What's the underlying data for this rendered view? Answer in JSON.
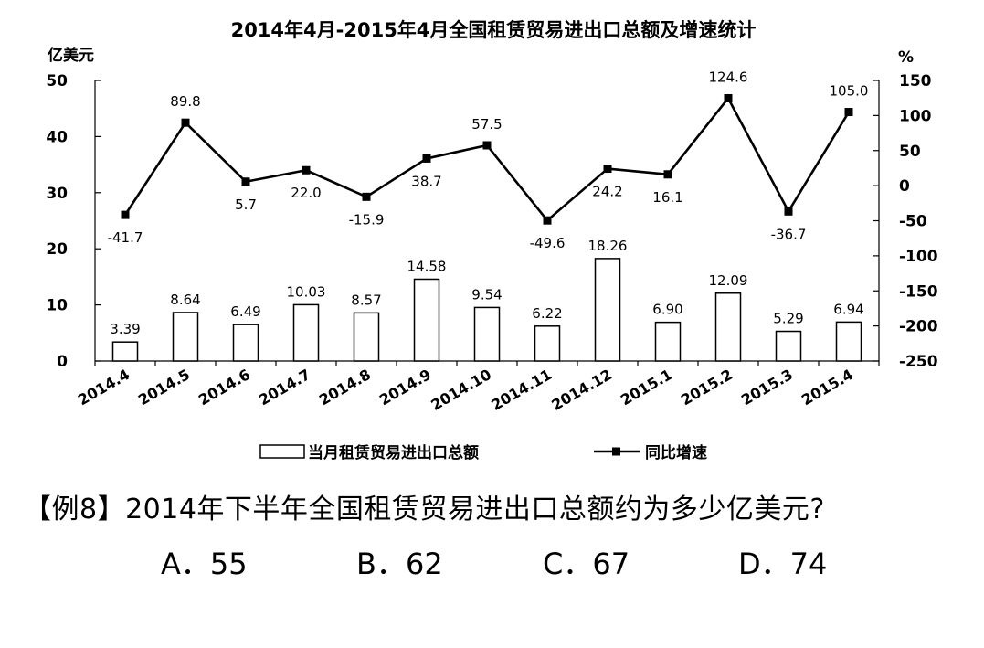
{
  "chart_data": {
    "type": "bar+line",
    "title": "2014年4月-2015年4月全国租赁贸易进出口总额及增速统计",
    "y_left_label": "亿美元",
    "y_right_label": "%",
    "y_left_lim": [
      0,
      50
    ],
    "y_left_ticks": [
      "0",
      "10",
      "20",
      "30",
      "40",
      "50"
    ],
    "y_right_lim": [
      -250,
      150
    ],
    "y_right_ticks": [
      "-250",
      "-200",
      "-150",
      "-100",
      "-50",
      "0",
      "50",
      "100",
      "150"
    ],
    "categories": [
      "2014.4",
      "2014.5",
      "2014.6",
      "2014.7",
      "2014.8",
      "2014.9",
      "2014.10",
      "2014.11",
      "2014.12",
      "2015.1",
      "2015.2",
      "2015.3",
      "2015.4"
    ],
    "series": [
      {
        "name": "当月租赁贸易进出口总额",
        "type": "bar",
        "axis": "left",
        "values": [
          3.39,
          8.64,
          6.49,
          10.03,
          8.57,
          14.58,
          9.54,
          6.22,
          18.26,
          6.9,
          12.09,
          5.29,
          6.94
        ],
        "labels": [
          "3.39",
          "8.64",
          "6.49",
          "10.03",
          "8.57",
          "14.58",
          "9.54",
          "6.22",
          "18.26",
          "6.90",
          "12.09",
          "5.29",
          "6.94"
        ]
      },
      {
        "name": "同比增速",
        "type": "line",
        "axis": "right",
        "values": [
          -41.7,
          89.8,
          5.7,
          22.0,
          -15.9,
          38.7,
          57.5,
          -49.6,
          24.2,
          16.1,
          124.6,
          -36.7,
          105.0
        ],
        "labels": [
          "-41.7",
          "89.8",
          "5.7",
          "22.0",
          "-15.9",
          "38.7",
          "57.5",
          "-49.6",
          "24.2",
          "16.1",
          "124.6",
          "-36.7",
          "105.0"
        ]
      }
    ],
    "legend_position": "bottom",
    "colors": {
      "bar_fill": "#ffffff",
      "bar_stroke": "#000000",
      "line": "#000000"
    }
  },
  "question": {
    "text": "【例8】2014年下半年全国租赁贸易进出口总额约为多少亿美元?",
    "options": [
      "A．55",
      "B．62",
      "C．67",
      "D．74"
    ]
  }
}
